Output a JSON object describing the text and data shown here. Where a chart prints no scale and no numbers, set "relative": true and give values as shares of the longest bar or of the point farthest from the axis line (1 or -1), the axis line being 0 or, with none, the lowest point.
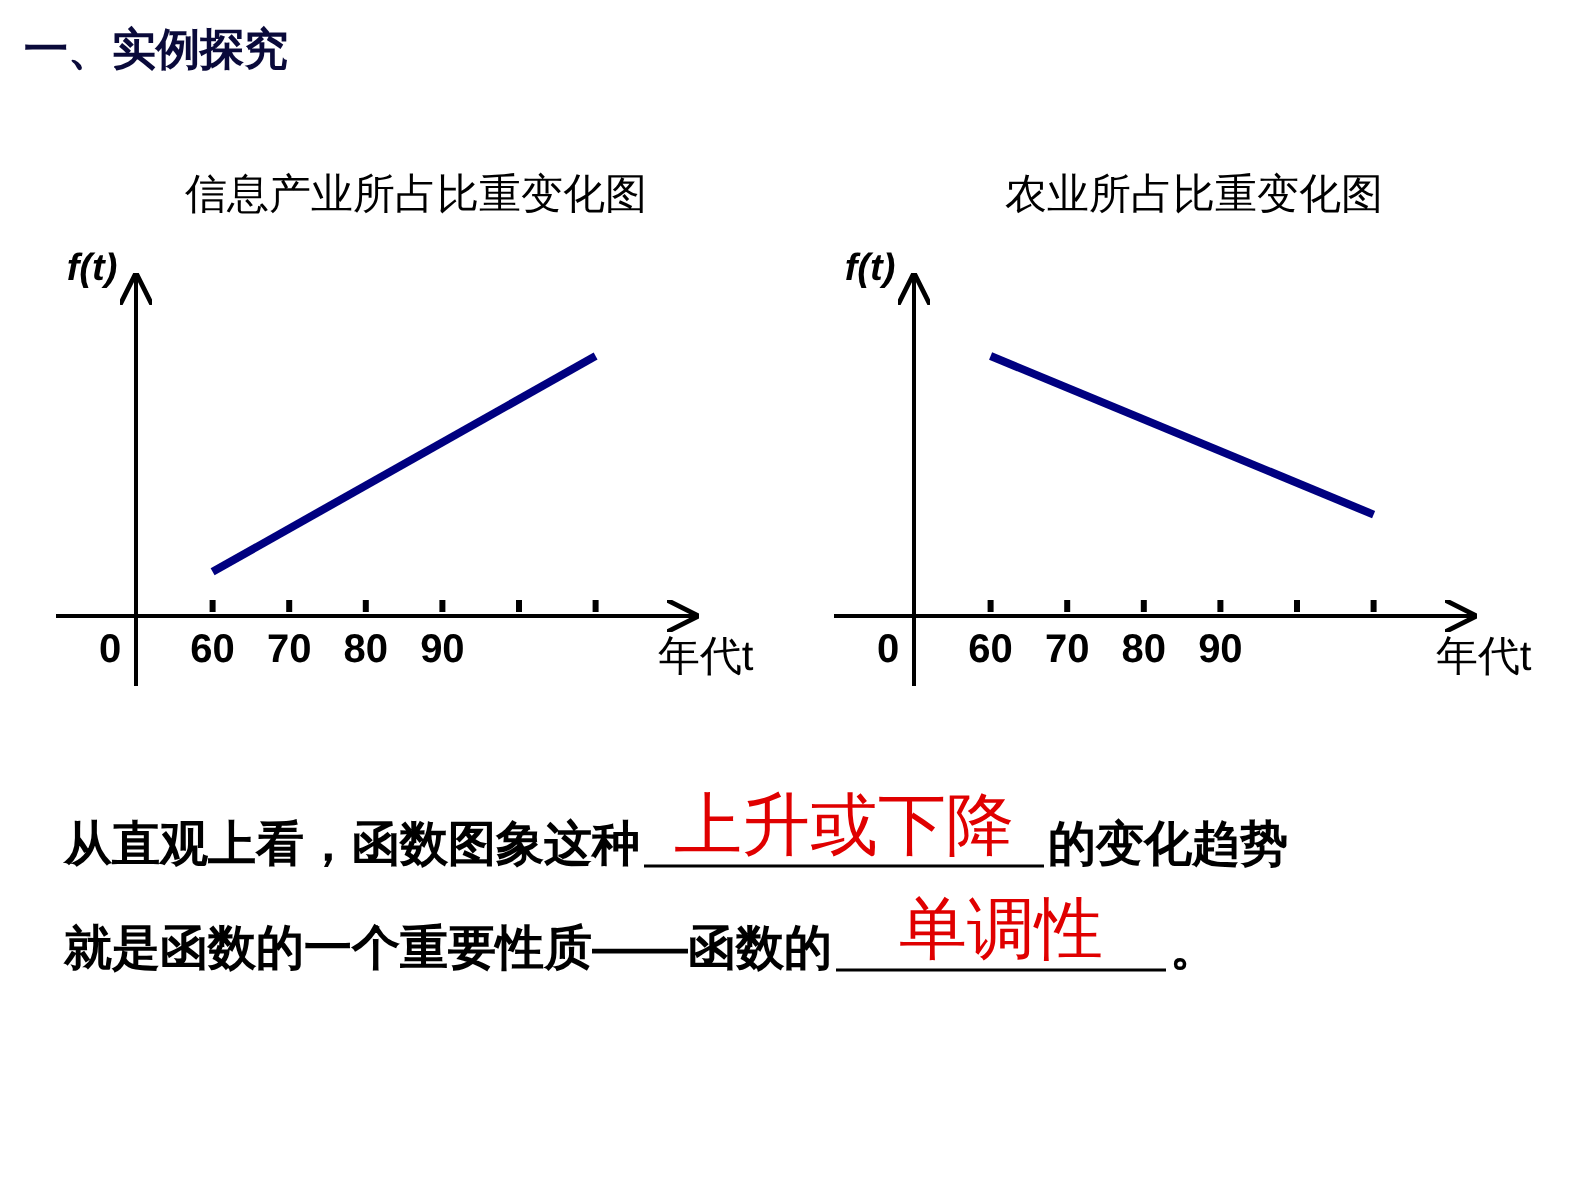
{
  "chart_data": [
    {
      "type": "line",
      "title": "信息产业所占比重变化图",
      "ylabel": "f(t)",
      "xlabel": "年代t",
      "relative": true,
      "categories": [
        "0",
        "60",
        "70",
        "80",
        "90",
        null,
        null
      ],
      "series": [
        {
          "color": "#000080",
          "values": [
            null,
            0.17,
            null,
            null,
            null,
            null,
            1
          ]
        }
      ]
    },
    {
      "type": "line",
      "title": "农业所占比重变化图",
      "ylabel": "f(t)",
      "xlabel": "年代t",
      "relative": true,
      "categories": [
        "0",
        "60",
        "70",
        "80",
        "90",
        null,
        null
      ],
      "series": [
        {
          "color": "#000080",
          "values": [
            null,
            1,
            null,
            null,
            null,
            null,
            0.39
          ]
        }
      ]
    },
    {
      "type": "other",
      "title": "一、实例探究",
      "annotations": [
        "从直观上看，函数图象这种",
        "上升或下降",
        "的变化趋势",
        "就是函数的一个重要性质——函数的",
        "单调性",
        "。"
      ]
    }
  ]
}
